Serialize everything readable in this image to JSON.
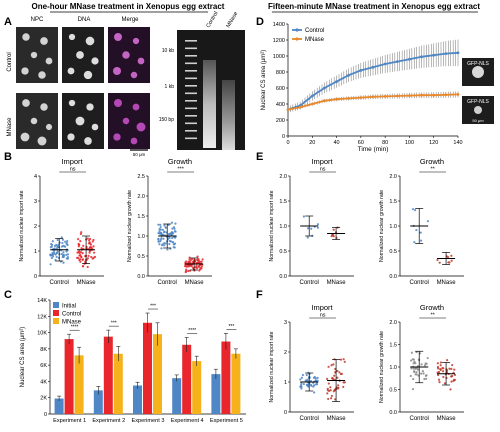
{
  "headers": {
    "left": "One-hour MNase treatment in Xenopus egg extract",
    "right": "Fifteen-minute MNase treatment in Xenopus egg extract"
  },
  "panels": {
    "A": "A",
    "B": "B",
    "C": "C",
    "D": "D",
    "E": "E",
    "F": "F"
  },
  "microscopy": {
    "columns": [
      "NPC",
      "DNA",
      "Merge"
    ],
    "rows": [
      "Control",
      "MNase"
    ],
    "scale_bar": "50 μm",
    "gel_lanes": [
      "Control",
      "MNase"
    ],
    "ladder": [
      "10 kb",
      "1 kb",
      "150 bp"
    ]
  },
  "colors": {
    "blue": "#4f86c6",
    "red": "#e8262b",
    "orange": "#f5b21b",
    "d_orange": "#e9892b",
    "e_red": "#c0392b",
    "f_gray": "#8a8a8a"
  },
  "chart_data": [
    {
      "id": "B-import",
      "type": "scatter",
      "title": "Import",
      "ylabel": "Normalized nuclear import rate",
      "categories": [
        "Control",
        "MNase"
      ],
      "ylim": [
        0,
        4
      ],
      "yticks": [
        0,
        1,
        2,
        3,
        4
      ],
      "means": [
        1.05,
        1.05
      ],
      "sd": [
        0.45,
        0.55
      ],
      "annotation": "ns"
    },
    {
      "id": "B-growth",
      "type": "scatter",
      "title": "Growth",
      "ylabel": "Normalized nuclear growth rate",
      "categories": [
        "Control",
        "MNase"
      ],
      "ylim": [
        0,
        2.5
      ],
      "yticks": [
        0.0,
        0.5,
        1.0,
        1.5,
        2.0,
        2.5
      ],
      "means": [
        1.0,
        0.3
      ],
      "sd": [
        0.3,
        0.15
      ],
      "annotation": "***"
    },
    {
      "id": "C",
      "type": "bar",
      "ylabel": "Nuclear CS area (μm²)",
      "categories": [
        "Experiment 1",
        "Experiment 2",
        "Experiment 3",
        "Experiment 4",
        "Experiment 5"
      ],
      "ylim": [
        0,
        14000
      ],
      "yticks": [
        0,
        2000,
        4000,
        6000,
        8000,
        10000,
        12000,
        14000
      ],
      "ytick_labels": [
        "0",
        "2K",
        "4K",
        "6K",
        "8K",
        "10K",
        "12K",
        "14K"
      ],
      "series": [
        {
          "name": "Initial",
          "values": [
            1900,
            2900,
            3500,
            4400,
            4900
          ],
          "err": [
            300,
            500,
            400,
            400,
            600
          ]
        },
        {
          "name": "Control",
          "values": [
            9200,
            9500,
            11200,
            8500,
            8900
          ],
          "err": [
            600,
            800,
            1200,
            900,
            1000
          ]
        },
        {
          "name": "MNase",
          "values": [
            7200,
            7400,
            9800,
            6500,
            7400
          ],
          "err": [
            1000,
            900,
            1400,
            600,
            600
          ]
        }
      ],
      "annotations": [
        "****",
        "***",
        "***",
        "****",
        "***"
      ]
    },
    {
      "id": "D",
      "type": "line",
      "xlabel": "Time (min)",
      "ylabel": "Nuclear CS area (μm²)",
      "xlim": [
        0,
        140
      ],
      "xticks": [
        0,
        20,
        40,
        60,
        80,
        100,
        120,
        140
      ],
      "ylim": [
        0,
        1400
      ],
      "yticks": [
        0,
        200,
        400,
        600,
        800,
        1000,
        1200,
        1400
      ],
      "series": [
        {
          "name": "Control",
          "x": [
            0,
            10,
            20,
            30,
            40,
            50,
            60,
            70,
            80,
            90,
            100,
            110,
            120,
            130,
            140
          ],
          "y": [
            330,
            380,
            500,
            600,
            680,
            760,
            820,
            860,
            900,
            930,
            960,
            990,
            1010,
            1030,
            1040
          ]
        },
        {
          "name": "MNase",
          "x": [
            0,
            10,
            20,
            30,
            40,
            50,
            60,
            70,
            80,
            90,
            100,
            110,
            120,
            130,
            140
          ],
          "y": [
            330,
            360,
            400,
            440,
            460,
            470,
            480,
            490,
            495,
            500,
            505,
            510,
            510,
            515,
            520
          ]
        }
      ],
      "inset_labels": [
        "GFP-NLS",
        "GFP-NLS"
      ],
      "inset_scale": "50 μm"
    },
    {
      "id": "E-import",
      "type": "scatter",
      "title": "Import",
      "ylabel": "Normalized nuclear import rate",
      "categories": [
        "Control",
        "MNase"
      ],
      "ylim": [
        0,
        2.0
      ],
      "yticks": [
        0.0,
        0.5,
        1.0,
        1.5,
        2.0
      ],
      "means": [
        1.0,
        0.85
      ],
      "sd": [
        0.2,
        0.12
      ],
      "annotation": "ns"
    },
    {
      "id": "E-growth",
      "type": "scatter",
      "title": "Growth",
      "ylabel": "Normalized nuclear growth rate",
      "categories": [
        "Control",
        "MNase"
      ],
      "ylim": [
        0,
        2.0
      ],
      "yticks": [
        0.0,
        0.5,
        1.0,
        1.5,
        2.0
      ],
      "means": [
        1.0,
        0.35
      ],
      "sd": [
        0.35,
        0.12
      ],
      "annotation": "**"
    },
    {
      "id": "F-import",
      "type": "scatter",
      "title": "Import",
      "ylabel": "Normalized nuclear import rate",
      "categories": [
        "Control",
        "MNase"
      ],
      "ylim": [
        0,
        3
      ],
      "yticks": [
        0,
        1,
        2,
        3
      ],
      "means": [
        1.0,
        1.05
      ],
      "sd": [
        0.3,
        0.7
      ],
      "annotation": "ns"
    },
    {
      "id": "F-growth",
      "type": "scatter",
      "title": "Growth",
      "ylabel": "Normalized nuclear growth rate",
      "categories": [
        "Control",
        "MNase"
      ],
      "ylim": [
        0,
        2.0
      ],
      "yticks": [
        0.0,
        0.5,
        1.0,
        1.5,
        2.0
      ],
      "means": [
        1.0,
        0.85
      ],
      "sd": [
        0.35,
        0.25
      ],
      "annotation": "**"
    }
  ]
}
